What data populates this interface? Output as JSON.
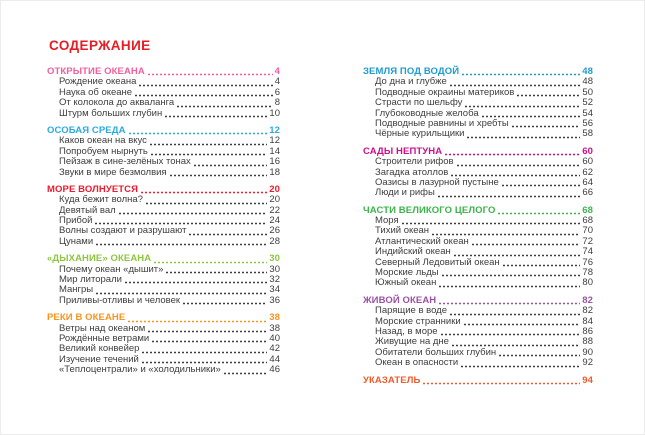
{
  "title": "СОДЕРЖАНИЕ",
  "title_color": "#e31e24",
  "text_color": "#3d3d3b",
  "columns": [
    {
      "sections": [
        {
          "title": "ОТКРЫТИЕ ОКЕАНА",
          "page": "4",
          "color": "#f0609e",
          "items": [
            {
              "label": "Рождение океана",
              "page": "4"
            },
            {
              "label": "Наука об океане",
              "page": "6"
            },
            {
              "label": "От колокола до акваланга",
              "page": "8"
            },
            {
              "label": "Штурм больших глубин",
              "page": "10"
            }
          ]
        },
        {
          "title": "ОСОБАЯ СРЕДА",
          "page": "12",
          "color": "#29abe2",
          "items": [
            {
              "label": "Каков океан на вкус",
              "page": "12"
            },
            {
              "label": "Попробуем нырнуть",
              "page": "14"
            },
            {
              "label": "Пейзаж в сине-зелёных тонах",
              "page": "16"
            },
            {
              "label": "Звуки в мире безмолвия",
              "page": "18"
            }
          ]
        },
        {
          "title": "МОРЕ ВОЛНУЕТСЯ",
          "page": "20",
          "color": "#ed1b2f",
          "items": [
            {
              "label": "Куда бежит волна?",
              "page": "20"
            },
            {
              "label": "Девятый вал",
              "page": "22"
            },
            {
              "label": "Прибой",
              "page": "24"
            },
            {
              "label": "Волны создают и разрушают",
              "page": "26"
            },
            {
              "label": "Цунами",
              "page": "28"
            }
          ]
        },
        {
          "title": "«ДЫХАНИЕ» ОКЕАНА",
          "page": "30",
          "color": "#8dc63f",
          "items": [
            {
              "label": "Почему океан «дышит»",
              "page": "30"
            },
            {
              "label": "Мир литорали",
              "page": "32"
            },
            {
              "label": "Мангры",
              "page": "34"
            },
            {
              "label": "Приливы-отливы и человек",
              "page": "36"
            }
          ]
        },
        {
          "title": "РЕКИ В ОКЕАНЕ",
          "page": "38",
          "color": "#f7941e",
          "items": [
            {
              "label": "Ветры над океаном",
              "page": "38"
            },
            {
              "label": "Рождённые ветрами",
              "page": "40"
            },
            {
              "label": "Великий конвейер",
              "page": "42"
            },
            {
              "label": "Изучение течений",
              "page": "44"
            },
            {
              "label": "«Теплоцентрали» и «холодильники»",
              "page": "46"
            }
          ]
        }
      ]
    },
    {
      "sections": [
        {
          "title": "ЗЕМЛЯ ПОД ВОДОЙ",
          "page": "48",
          "color": "#1f9bcf",
          "items": [
            {
              "label": "До дна и глубже",
              "page": "48"
            },
            {
              "label": "Подводные окраины материков",
              "page": "50"
            },
            {
              "label": "Страсти по шельфу",
              "page": "52"
            },
            {
              "label": "Глубоководные желоба",
              "page": "54"
            },
            {
              "label": "Подводные равнины и хребты",
              "page": "56"
            },
            {
              "label": "Чёрные курильщики",
              "page": "58"
            }
          ]
        },
        {
          "title": "САДЫ НЕПТУНА",
          "page": "60",
          "color": "#cb0e8c",
          "items": [
            {
              "label": "Строители рифов",
              "page": "60"
            },
            {
              "label": "Загадка атоллов",
              "page": "62"
            },
            {
              "label": "Оазисы в лазурной пустыне",
              "page": "64"
            },
            {
              "label": "Люди и рифы",
              "page": "66"
            }
          ]
        },
        {
          "title": "ЧАСТИ ВЕЛИКОГО ЦЕЛОГО",
          "page": "68",
          "color": "#3ab54a",
          "items": [
            {
              "label": "Моря",
              "page": "68"
            },
            {
              "label": "Тихий океан",
              "page": "70"
            },
            {
              "label": "Атлантический океан",
              "page": "72"
            },
            {
              "label": "Индийский океан",
              "page": "74"
            },
            {
              "label": "Северный Ледовитый океан",
              "page": "76"
            },
            {
              "label": "Морские льды",
              "page": "78"
            },
            {
              "label": "Южный океан",
              "page": "80"
            }
          ]
        },
        {
          "title": "ЖИВОЙ ОКЕАН",
          "page": "82",
          "color": "#9b51a5",
          "items": [
            {
              "label": "Парящие в воде",
              "page": "82"
            },
            {
              "label": "Морские странники",
              "page": "84"
            },
            {
              "label": "Назад, в море",
              "page": "86"
            },
            {
              "label": "Живущие на дне",
              "page": "88"
            },
            {
              "label": "Обитатели больших глубин",
              "page": "90"
            },
            {
              "label": "Океан в опасности",
              "page": "92"
            }
          ]
        },
        {
          "title": "УКАЗАТЕЛЬ",
          "page": "94",
          "color": "#f15a29",
          "items": []
        }
      ]
    }
  ]
}
